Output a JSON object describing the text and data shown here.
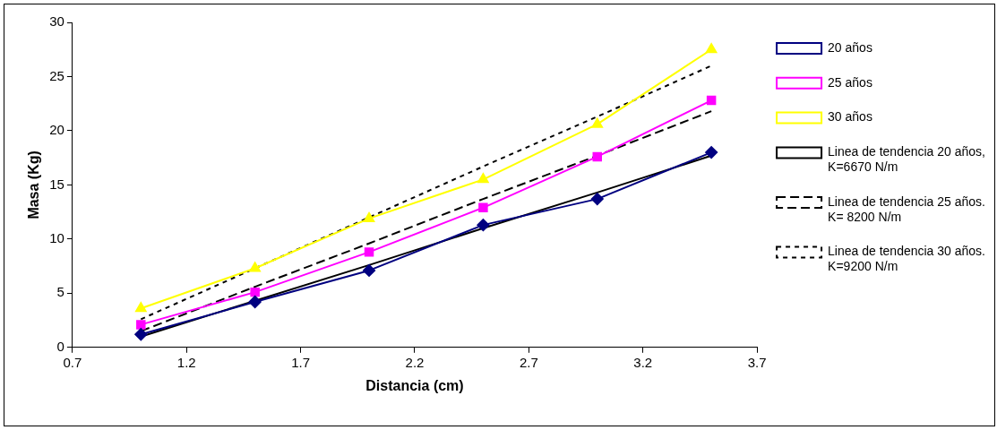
{
  "chart_data": {
    "type": "line",
    "xlabel": "Distancia (cm)",
    "ylabel": "Masa (Kg)",
    "xlim": [
      0.7,
      3.7
    ],
    "xticks": [
      0.7,
      1.2,
      1.7,
      2.2,
      2.7,
      3.2,
      3.7
    ],
    "ylim": [
      0,
      30
    ],
    "yticks": [
      0,
      5,
      10,
      15,
      20,
      25,
      30
    ],
    "grid": false,
    "legend": "right",
    "x": [
      1,
      1.5,
      2,
      2.5,
      3,
      3.5
    ],
    "series": [
      {
        "name": "20 años",
        "color": "#000080",
        "marker": "diamond",
        "line_style": "solid",
        "values": [
          1.2,
          4.2,
          7.1,
          11.3,
          13.7,
          18.0
        ]
      },
      {
        "name": "25 años",
        "color": "#ff00ff",
        "marker": "square",
        "line_style": "solid",
        "values": [
          2.1,
          5.1,
          8.8,
          12.9,
          17.6,
          22.8
        ]
      },
      {
        "name": "30 años",
        "color": "#ffff00",
        "marker": "triangle",
        "line_style": "solid",
        "values": [
          3.6,
          7.3,
          11.9,
          15.5,
          20.6,
          27.5
        ]
      },
      {
        "name": "Linea de tendencia 20 años, K=6670 N/m",
        "color": "#000000",
        "marker": "none",
        "line_style": "solid",
        "values": [
          1.0,
          4.3,
          7.6,
          11.0,
          14.3,
          17.7
        ]
      },
      {
        "name": "Linea de tendencia 25 años. K= 8200 N/m",
        "color": "#000000",
        "marker": "none",
        "line_style": "dashed",
        "values": [
          1.5,
          5.6,
          9.6,
          13.7,
          17.7,
          21.8
        ]
      },
      {
        "name": "Linea de tendencia 30 años. K=9200 N/m",
        "color": "#000000",
        "marker": "none",
        "line_style": "dotted",
        "values": [
          2.6,
          7.3,
          12.0,
          16.7,
          21.3,
          26.0
        ]
      }
    ]
  }
}
